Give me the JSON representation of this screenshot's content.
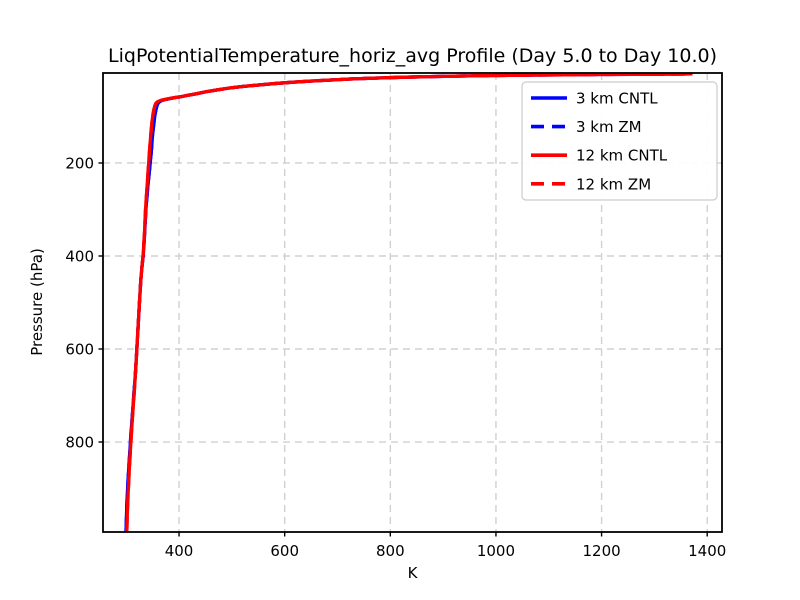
{
  "chart_data": {
    "type": "line",
    "title": "LiqPotentialTemperature_horiz_avg Profile (Day 5.0 to Day 10.0)",
    "xlabel": "K",
    "ylabel": "Pressure (hPa)",
    "xlim": [
      256,
      1428
    ],
    "ylim_bottom": 993.5,
    "ylim_top": 6.5,
    "y_axis_inverted": true,
    "x_ticks": [
      400,
      600,
      800,
      1000,
      1200,
      1400
    ],
    "y_ticks": [
      200,
      400,
      600,
      800
    ],
    "grid": {
      "visible": true,
      "linestyle": "dashed",
      "color": "#d0d0d0"
    },
    "colors": {
      "blue": "#0000ff",
      "red": "#ff0000",
      "spine": "#000000",
      "text": "#000000",
      "legend_border": "#cccccc"
    },
    "legend": {
      "location": "upper right",
      "entries": [
        "3 km CNTL",
        "3 km ZM",
        "12 km CNTL",
        "12 km ZM"
      ]
    },
    "units": {
      "x": "K",
      "y": "hPa"
    },
    "profiles": {
      "km3": [
        [
          299.5,
          993
        ],
        [
          300.5,
          955
        ],
        [
          302,
          912
        ],
        [
          304,
          868
        ],
        [
          306.5,
          825
        ],
        [
          309,
          780
        ],
        [
          312,
          735
        ],
        [
          314.5,
          695
        ],
        [
          317.5,
          650
        ],
        [
          320,
          602
        ],
        [
          322.5,
          552
        ],
        [
          325,
          502
        ],
        [
          327.5,
          452
        ],
        [
          330,
          420
        ],
        [
          332.3,
          398
        ],
        [
          335,
          350
        ],
        [
          337.3,
          300
        ],
        [
          341,
          249
        ],
        [
          345.5,
          199
        ],
        [
          348,
          168
        ],
        [
          350,
          138
        ],
        [
          352.5,
          113
        ],
        [
          354.5,
          96
        ],
        [
          356.5,
          84
        ],
        [
          358.5,
          76
        ],
        [
          360.5,
          71
        ],
        [
          363.5,
          68
        ],
        [
          368,
          65.5
        ],
        [
          374.5,
          63.5
        ],
        [
          382.5,
          61.5
        ],
        [
          392,
          59.5
        ],
        [
          403.5,
          57.5
        ],
        [
          417,
          54.5
        ],
        [
          433,
          51
        ],
        [
          451,
          47
        ],
        [
          471,
          43
        ],
        [
          494,
          39
        ],
        [
          520,
          35.5
        ],
        [
          548,
          32.5
        ],
        [
          578,
          29.5
        ],
        [
          612,
          26.5
        ],
        [
          648,
          24
        ],
        [
          688,
          21.5
        ],
        [
          724,
          19.5
        ],
        [
          770,
          17.5
        ],
        [
          820,
          15.8
        ],
        [
          875,
          14.3
        ],
        [
          935,
          13
        ],
        [
          1000,
          11.9
        ],
        [
          1065,
          11
        ],
        [
          1130,
          10.3
        ],
        [
          1195,
          9.7
        ],
        [
          1260,
          9.2
        ],
        [
          1320,
          8.8
        ],
        [
          1372,
          8.5
        ]
      ],
      "km12": [
        [
          301,
          993
        ],
        [
          302,
          955
        ],
        [
          303.5,
          912
        ],
        [
          305.5,
          868
        ],
        [
          307.5,
          825
        ],
        [
          310,
          780
        ],
        [
          312.5,
          735
        ],
        [
          315,
          695
        ],
        [
          317.5,
          650
        ],
        [
          320,
          602
        ],
        [
          322.5,
          552
        ],
        [
          325,
          502
        ],
        [
          327.5,
          452
        ],
        [
          330,
          420
        ],
        [
          332,
          398
        ],
        [
          334.5,
          350
        ],
        [
          336.5,
          300
        ],
        [
          339.5,
          249
        ],
        [
          342.5,
          199
        ],
        [
          344.5,
          168
        ],
        [
          346.5,
          138
        ],
        [
          348.5,
          113
        ],
        [
          350.5,
          96
        ],
        [
          352.5,
          84
        ],
        [
          354.5,
          76
        ],
        [
          356.5,
          71
        ],
        [
          360,
          68
        ],
        [
          365,
          65.5
        ],
        [
          372,
          63.5
        ],
        [
          381,
          61.5
        ],
        [
          391,
          59.5
        ],
        [
          403,
          57.5
        ],
        [
          417,
          54.5
        ],
        [
          433,
          51
        ],
        [
          451,
          47
        ],
        [
          471,
          43
        ],
        [
          494,
          39
        ],
        [
          520,
          35.5
        ],
        [
          548,
          32.5
        ],
        [
          578,
          29.5
        ],
        [
          612,
          26.5
        ],
        [
          648,
          24
        ],
        [
          688,
          21.5
        ],
        [
          724,
          19.5
        ],
        [
          770,
          17.5
        ],
        [
          820,
          15.8
        ],
        [
          875,
          14.3
        ],
        [
          935,
          13
        ],
        [
          1000,
          11.9
        ],
        [
          1065,
          11
        ],
        [
          1130,
          10.3
        ],
        [
          1195,
          9.7
        ],
        [
          1260,
          9.2
        ],
        [
          1320,
          8.8
        ],
        [
          1372,
          8.5
        ]
      ]
    },
    "series": [
      {
        "name": "3 km CNTL",
        "profile": "km3",
        "color": "#0000ff",
        "linestyle": "solid"
      },
      {
        "name": "3 km ZM",
        "profile": "km3",
        "color": "#0000ff",
        "linestyle": "dashed"
      },
      {
        "name": "12 km CNTL",
        "profile": "km12",
        "color": "#ff0000",
        "linestyle": "solid"
      },
      {
        "name": "12 km ZM",
        "profile": "km12",
        "color": "#ff0000",
        "linestyle": "dashed"
      }
    ]
  }
}
